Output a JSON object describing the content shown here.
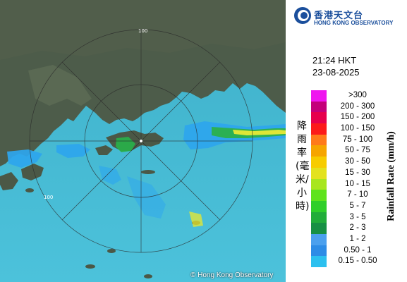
{
  "map": {
    "copyright": "© Hong Kong Observatory",
    "ring_labels": [
      "100",
      "100"
    ],
    "colors": {
      "sea": "#46bcd6",
      "land": "#4a5a4a",
      "rain_light": "#2ea6ee",
      "rain_mid": "#29b04a",
      "rain_heavy": "#ecea2a"
    }
  },
  "legend": {
    "logo": {
      "zh": "香港天文台",
      "en": "HONG KONG OBSERVATORY",
      "icon": "hko-logo-icon"
    },
    "time": "21:24 HKT",
    "date": "23-08-2025",
    "zh_title": "降雨率(毫米/小時)",
    "en_title": "Rainfall Rate (mm/h)",
    "scale": [
      {
        "label": ">300",
        "color": "#ef16ef"
      },
      {
        "label": "200 - 300",
        "color": "#c4007a"
      },
      {
        "label": "150 - 200",
        "color": "#e6004c"
      },
      {
        "label": "100 - 150",
        "color": "#fc1a1a"
      },
      {
        "label": "75 - 100",
        "color": "#ff7a1a"
      },
      {
        "label": "50 - 75",
        "color": "#f6a500"
      },
      {
        "label": "30 - 50",
        "color": "#f7cc00"
      },
      {
        "label": "15 - 30",
        "color": "#e3e21e"
      },
      {
        "label": "10 - 15",
        "color": "#a8e61f"
      },
      {
        "label": "7 - 10",
        "color": "#5fe31c"
      },
      {
        "label": "5 - 7",
        "color": "#2fcf2a"
      },
      {
        "label": "3 - 5",
        "color": "#21ad3a"
      },
      {
        "label": "2 - 3",
        "color": "#179044"
      },
      {
        "label": "1 - 2",
        "color": "#4ba0ee"
      },
      {
        "label": "0.50 - 1",
        "color": "#2d8ce6"
      },
      {
        "label": "0.15 - 0.50",
        "color": "#2cc0ef"
      }
    ]
  }
}
